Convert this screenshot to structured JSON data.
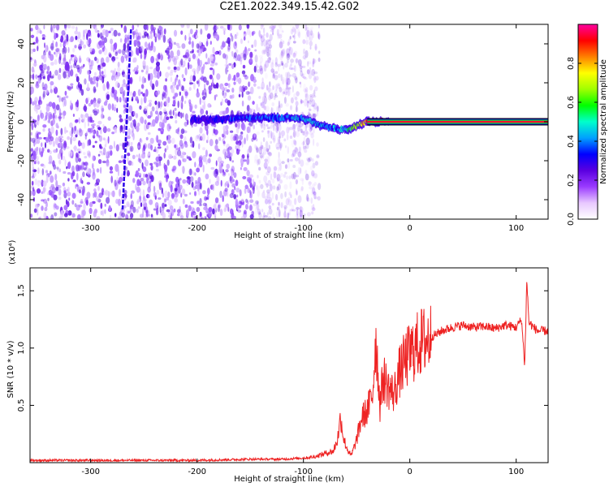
{
  "title": "C2E1.2022.349.15.42.G02",
  "colors": {
    "frame": "#000000",
    "snr_line": "#ee2222",
    "colorbar_stops": [
      "#ffffff",
      "#e8c8ff",
      "#9a3bff",
      "#5a00e0",
      "#0000ff",
      "#00a0ff",
      "#00ffcc",
      "#00ff00",
      "#a0ff00",
      "#ffff00",
      "#ff8000",
      "#ff0000",
      "#ff00a0"
    ]
  },
  "chart_data": [
    {
      "type": "heatmap",
      "xlabel": "Height of straight line (km)",
      "ylabel": "Frequency (Hz)",
      "xlim": [
        -357,
        130
      ],
      "ylim": [
        -50,
        50
      ],
      "x_ticks": [
        -300,
        -200,
        -100,
        0,
        100
      ],
      "x_tick_labels": [
        "-300",
        "-200",
        "-100",
        "0",
        "100"
      ],
      "y_ticks": [
        -40,
        -20,
        0,
        20,
        40
      ],
      "y_tick_labels": [
        "-40",
        "-20",
        "0",
        "20",
        "40"
      ],
      "colorbar": {
        "label": "Normalized spectral amplitude",
        "range": [
          0,
          1
        ],
        "ticks": [
          0.0,
          0.2,
          0.4,
          0.6,
          0.8
        ],
        "tick_labels": [
          "0.0",
          "0.2",
          "0.4",
          "0.6",
          "0.8"
        ]
      },
      "carrier_trace": {
        "x": [
          -205,
          -180,
          -160,
          -140,
          -120,
          -105,
          -95,
          -85,
          -75,
          -65,
          -58,
          -50,
          -40,
          -30,
          -20,
          -10,
          0,
          50,
          100,
          110,
          130
        ],
        "y": [
          1,
          1,
          2,
          2,
          2,
          2,
          1,
          -2,
          -3,
          -4,
          -4,
          -2,
          0,
          0,
          0,
          0,
          0,
          0,
          0,
          0,
          0
        ],
        "amplitude": [
          0.25,
          0.28,
          0.3,
          0.32,
          0.35,
          0.38,
          0.4,
          0.38,
          0.35,
          0.4,
          0.5,
          0.6,
          0.8,
          0.85,
          0.85,
          0.9,
          0.95,
          0.95,
          0.95,
          0.95,
          0.95
        ]
      },
      "noise_region_x": [
        -357,
        -105
      ],
      "spurious_line": {
        "x": [
          -270,
          -262
        ],
        "y": [
          -45,
          48
        ]
      }
    },
    {
      "type": "line",
      "xlabel": "Height of straight line (km)",
      "ylabel": "SNR (10 * v/v)",
      "y_scale_label": "(x10⁴)",
      "xlim": [
        -357,
        130
      ],
      "ylim": [
        0,
        1.7
      ],
      "x_ticks": [
        -300,
        -200,
        -100,
        0,
        100
      ],
      "x_tick_labels": [
        "-300",
        "-200",
        "-100",
        "0",
        "100"
      ],
      "y_ticks": [
        0.5,
        1.0,
        1.5
      ],
      "y_tick_labels": [
        "0.5",
        "1.0",
        "1.5"
      ],
      "series": [
        {
          "x": [
            -357,
            -300,
            -250,
            -200,
            -150,
            -120,
            -100,
            -90,
            -80,
            -72,
            -68,
            -65,
            -62,
            -58,
            -55,
            -50,
            -45,
            -40,
            -35,
            -32,
            -28,
            -25,
            -20,
            -15,
            -10,
            -5,
            0,
            5,
            10,
            15,
            20,
            25,
            30,
            40,
            50,
            60,
            70,
            80,
            90,
            100,
            105,
            108,
            110,
            112,
            120,
            130
          ],
          "y": [
            0.02,
            0.02,
            0.02,
            0.02,
            0.03,
            0.03,
            0.04,
            0.05,
            0.08,
            0.1,
            0.2,
            0.4,
            0.2,
            0.1,
            0.06,
            0.2,
            0.4,
            0.45,
            0.6,
            1.1,
            0.5,
            0.75,
            0.65,
            0.6,
            0.78,
            0.88,
            0.95,
            1.0,
            1.05,
            1.07,
            1.1,
            1.12,
            1.15,
            1.18,
            1.2,
            1.18,
            1.19,
            1.17,
            1.2,
            1.18,
            1.25,
            0.85,
            1.6,
            1.22,
            1.15,
            1.15
          ]
        }
      ]
    }
  ]
}
